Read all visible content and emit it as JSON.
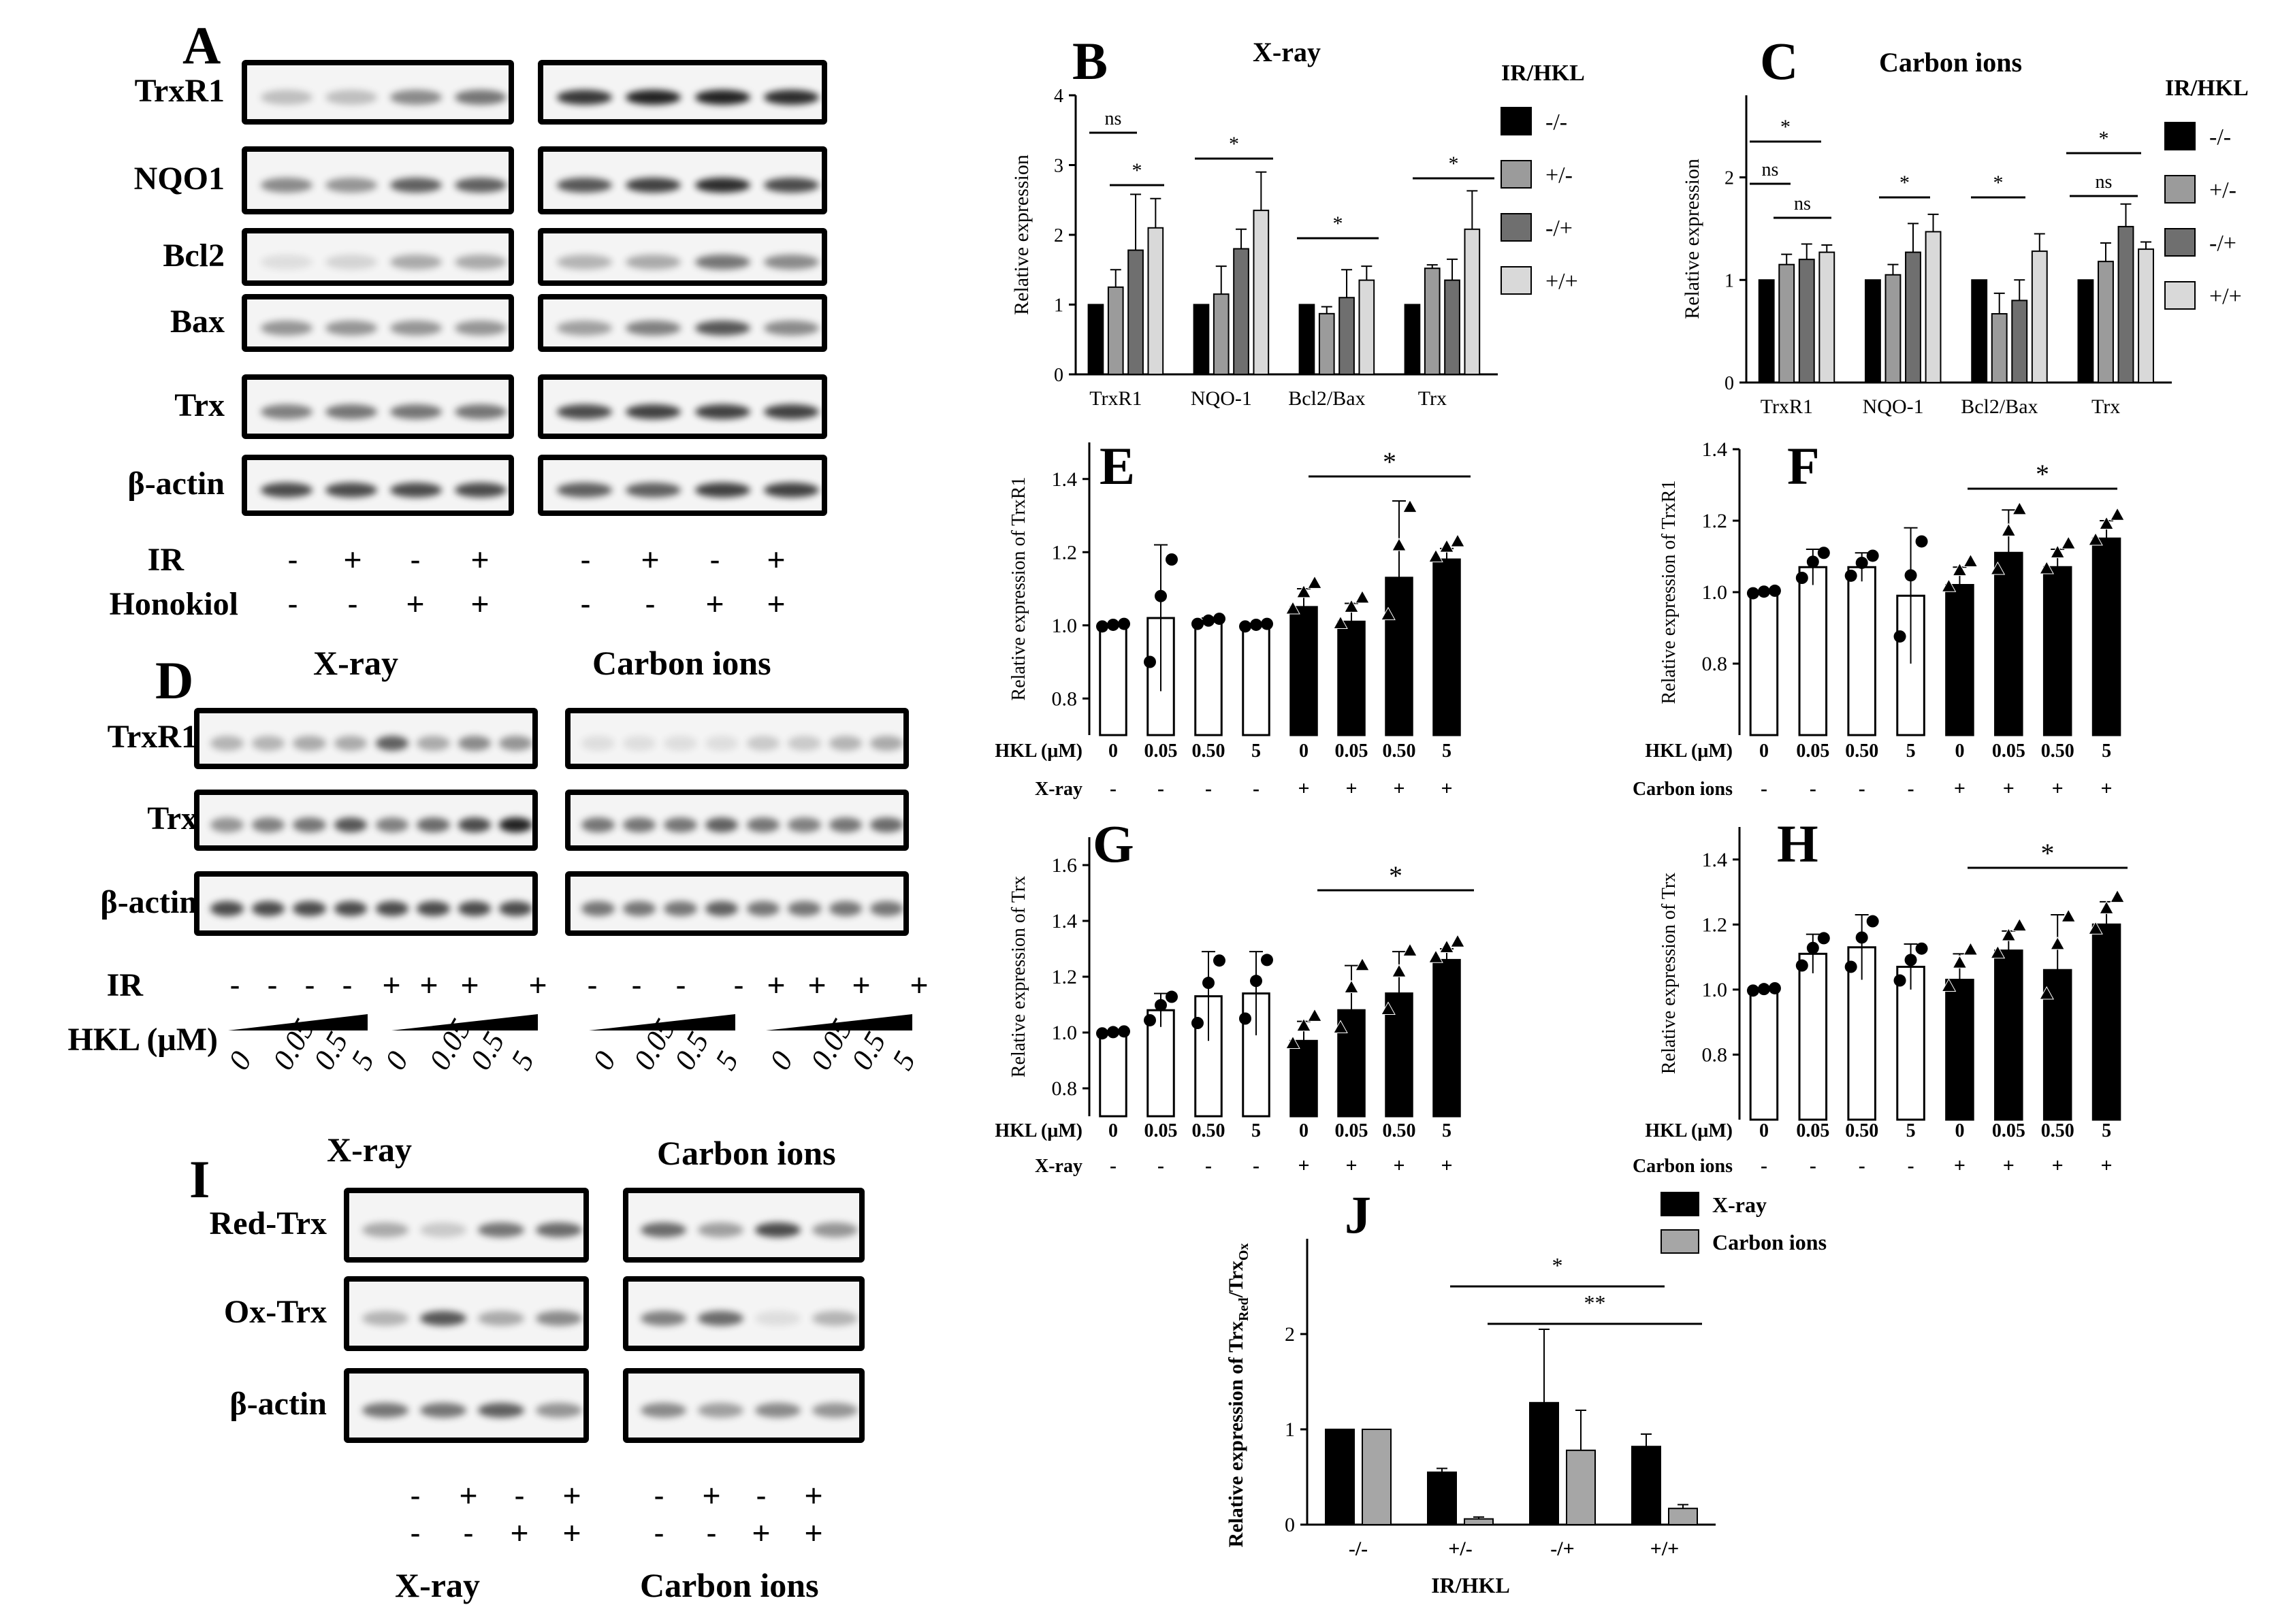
{
  "panelA": {
    "label": "A",
    "rows": [
      "TrxR1",
      "NQO1",
      "Bcl2",
      "Bax",
      "Trx",
      "β-actin"
    ],
    "ir_label": "IR",
    "honokiol_label": "Honokiol",
    "ir_signs": [
      "-",
      "+",
      "-",
      "+"
    ],
    "honokiol_signs": [
      "-",
      "-",
      "+",
      "+"
    ]
  },
  "panelD": {
    "label": "D",
    "left_title": "X-ray",
    "right_title": "Carbon ions",
    "rows": [
      "TrxR1",
      "Trx",
      "β-actin"
    ],
    "ir_label": "IR",
    "hkl_label": "HKL (μM)",
    "ir_signs": [
      "-",
      "-",
      "-",
      "-",
      "+",
      "+",
      "+",
      "+"
    ],
    "doses": [
      "0",
      "0.05",
      "0.5",
      "5"
    ]
  },
  "panelI": {
    "label": "I",
    "left_title": "X-ray",
    "right_title": "Carbon ions",
    "rows": [
      "Red-Trx",
      "Ox-Trx",
      "β-actin"
    ],
    "row1_signs": [
      "-",
      "+",
      "-",
      "+"
    ],
    "row2_signs": [
      "-",
      "-",
      "+",
      "+"
    ],
    "bottom_left": "X-ray",
    "bottom_right": "Carbon ions"
  },
  "chart_data": [
    {
      "panel": "B",
      "type": "bar",
      "title": "X-ray",
      "ylabel": "Relative expression",
      "ylim": [
        0,
        4
      ],
      "yticks": [
        "0",
        "1",
        "2",
        "3",
        "4"
      ],
      "categories": [
        "TrxR1",
        "NQO-1",
        "Bcl2/Bax",
        "Trx"
      ],
      "legend_title": "IR/HKL",
      "series": [
        {
          "name": "-/-",
          "values": [
            1.0,
            1.0,
            1.0,
            1.0
          ],
          "errors": [
            0,
            0,
            0,
            0
          ],
          "color": "#000000"
        },
        {
          "name": "+/-",
          "values": [
            1.25,
            1.15,
            0.87,
            1.52
          ],
          "errors": [
            0.25,
            0.4,
            0.1,
            0.05
          ],
          "color": "#9b9b9b"
        },
        {
          "name": "-/+",
          "values": [
            1.78,
            1.8,
            1.1,
            1.35
          ],
          "errors": [
            0.8,
            0.28,
            0.4,
            0.3
          ],
          "color": "#6f6f6f"
        },
        {
          "name": "+/+",
          "values": [
            2.1,
            2.35,
            1.35,
            2.08
          ],
          "errors": [
            0.42,
            0.55,
            0.2,
            0.55
          ],
          "color": "#d9d9d9"
        }
      ],
      "significance": [
        "ns",
        "*",
        "*",
        "*",
        "*"
      ]
    },
    {
      "panel": "C",
      "type": "bar",
      "title": "Carbon ions",
      "ylabel": "Relative expression",
      "ylim": [
        0,
        2.8
      ],
      "yticks": [
        "0",
        "1",
        "2"
      ],
      "categories": [
        "TrxR1",
        "NQO-1",
        "Bcl2/Bax",
        "Trx"
      ],
      "legend_title": "IR/HKL",
      "series": [
        {
          "name": "-/-",
          "values": [
            1.0,
            1.0,
            1.0,
            1.0
          ],
          "errors": [
            0,
            0,
            0,
            0
          ],
          "color": "#000000"
        },
        {
          "name": "+/-",
          "values": [
            1.15,
            1.05,
            0.67,
            1.18
          ],
          "errors": [
            0.1,
            0.1,
            0.2,
            0.18
          ],
          "color": "#9b9b9b"
        },
        {
          "name": "-/+",
          "values": [
            1.2,
            1.27,
            0.8,
            1.52
          ],
          "errors": [
            0.15,
            0.28,
            0.2,
            0.22
          ],
          "color": "#6f6f6f"
        },
        {
          "name": "+/+",
          "values": [
            1.27,
            1.47,
            1.28,
            1.3
          ],
          "errors": [
            0.07,
            0.17,
            0.17,
            0.07
          ],
          "color": "#d9d9d9"
        }
      ],
      "significance": [
        "*",
        "ns",
        "ns",
        "*",
        "*",
        "*",
        "ns"
      ]
    },
    {
      "panel": "E",
      "type": "bar",
      "ylabel": "Relative expression of TrxR1",
      "ylim": [
        0.7,
        1.5
      ],
      "yticks": [
        "0.8",
        "1.0",
        "1.2",
        "1.4"
      ],
      "row1_label": "HKL (μM)",
      "row2_label": "X-ray",
      "categories": [
        "0",
        "0.05",
        "0.50",
        "5",
        "0",
        "0.05",
        "0.50",
        "5"
      ],
      "row2": [
        "-",
        "-",
        "-",
        "-",
        "+",
        "+",
        "+",
        "+"
      ],
      "values": [
        1.0,
        1.02,
        1.01,
        1.0,
        1.05,
        1.01,
        1.13,
        1.18
      ],
      "errors": [
        0.005,
        0.2,
        0.01,
        0.005,
        0.05,
        0.05,
        0.21,
        0.03
      ],
      "filled": [
        false,
        false,
        false,
        false,
        true,
        true,
        true,
        true
      ],
      "significance": "*"
    },
    {
      "panel": "F",
      "type": "bar",
      "ylabel": "Relative expression of TrxR1",
      "ylim": [
        0.6,
        1.4
      ],
      "yticks": [
        "0.8",
        "1.0",
        "1.2",
        "1.4"
      ],
      "row1_label": "HKL (μM)",
      "row2_label": "Carbon ions",
      "categories": [
        "0",
        "0.05",
        "0.50",
        "5",
        "0",
        "0.05",
        "0.50",
        "5"
      ],
      "row2": [
        "-",
        "-",
        "-",
        "-",
        "+",
        "+",
        "+",
        "+"
      ],
      "values": [
        1.0,
        1.07,
        1.07,
        0.99,
        1.02,
        1.11,
        1.07,
        1.15
      ],
      "errors": [
        0.005,
        0.05,
        0.04,
        0.19,
        0.05,
        0.12,
        0.05,
        0.05
      ],
      "filled": [
        false,
        false,
        false,
        false,
        true,
        true,
        true,
        true
      ],
      "significance": "*"
    },
    {
      "panel": "G",
      "type": "bar",
      "ylabel": "Relative expression of Trx",
      "ylim": [
        0.7,
        1.7
      ],
      "yticks": [
        "0.8",
        "1.0",
        "1.2",
        "1.4",
        "1.6"
      ],
      "row1_label": "HKL (μM)",
      "row2_label": "X-ray",
      "categories": [
        "0",
        "0.05",
        "0.50",
        "5",
        "0",
        "0.05",
        "0.50",
        "5"
      ],
      "row2": [
        "-",
        "-",
        "-",
        "-",
        "+",
        "+",
        "+",
        "+"
      ],
      "values": [
        1.0,
        1.08,
        1.13,
        1.14,
        0.97,
        1.08,
        1.14,
        1.26
      ],
      "errors": [
        0.005,
        0.06,
        0.16,
        0.15,
        0.07,
        0.16,
        0.15,
        0.04
      ],
      "filled": [
        false,
        false,
        false,
        false,
        true,
        true,
        true,
        true
      ],
      "significance": "*"
    },
    {
      "panel": "H",
      "type": "bar",
      "ylabel": "Relative expression of Trx",
      "ylim": [
        0.6,
        1.5
      ],
      "yticks": [
        "0.8",
        "1.0",
        "1.2",
        "1.4"
      ],
      "row1_label": "HKL (μM)",
      "row2_label": "Carbon ions",
      "categories": [
        "0",
        "0.05",
        "0.50",
        "5",
        "0",
        "0.05",
        "0.50",
        "5"
      ],
      "row2": [
        "-",
        "-",
        "-",
        "-",
        "+",
        "+",
        "+",
        "+"
      ],
      "values": [
        1.0,
        1.11,
        1.13,
        1.07,
        1.03,
        1.12,
        1.06,
        1.2
      ],
      "errors": [
        0.005,
        0.06,
        0.1,
        0.07,
        0.08,
        0.06,
        0.17,
        0.07
      ],
      "filled": [
        false,
        false,
        false,
        false,
        true,
        true,
        true,
        true
      ],
      "significance": "*"
    },
    {
      "panel": "J",
      "type": "bar",
      "ylabel_prefix": "Relative expression of Trx",
      "ylabel_sub1": "Red",
      "ylabel_mid": "/Trx",
      "ylabel_sub2": "Ox",
      "xlabel": "IR/HKL",
      "ylim": [
        0,
        3
      ],
      "yticks": [
        "0",
        "1",
        "2"
      ],
      "categories": [
        "-/-",
        "+/-",
        "-/+",
        "+/+"
      ],
      "series": [
        {
          "name": "X-ray",
          "values": [
            1.0,
            0.55,
            1.28,
            0.82
          ],
          "errors": [
            0,
            0.04,
            0.77,
            0.13
          ],
          "color": "#000000"
        },
        {
          "name": "Carbon ions",
          "values": [
            1.0,
            0.06,
            0.78,
            0.17
          ],
          "errors": [
            0,
            0.02,
            0.42,
            0.04
          ],
          "color": "#a6a6a6"
        }
      ],
      "significance": [
        "*",
        "**"
      ]
    }
  ]
}
